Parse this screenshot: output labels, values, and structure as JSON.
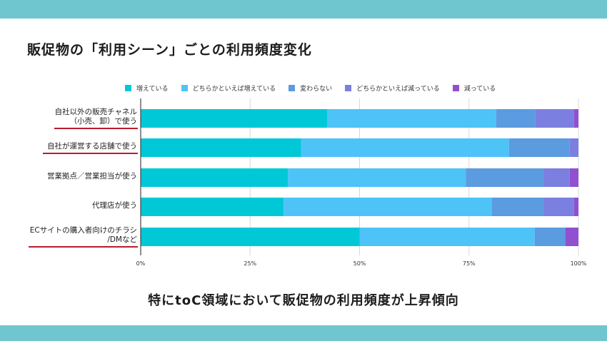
{
  "title": "販促物の「利用シーン」ごとの利用頻度変化",
  "conclusion": "特にtoC領域において販促物の利用頻度が上昇傾向",
  "colors": {
    "band": "#6fc6cf",
    "underline": "#b81c2e"
  },
  "chart_data": {
    "type": "bar",
    "orientation": "horizontal",
    "stacked": true,
    "normalized": true,
    "legend_position": "top",
    "categories": [
      "自社以外の販売チャネル\n（小売、卸）で使う",
      "自社が運営する店舗で使う",
      "営業拠点／営業担当が使う",
      "代理店が使う",
      "ECサイトの購入者向けのチラシ\n/DMなど"
    ],
    "series": [
      {
        "name": "増えている",
        "color": "#00c8d7",
        "values": [
          43,
          37,
          34,
          33,
          50
        ]
      },
      {
        "name": "どちらかといえば増えている",
        "color": "#4dc3f8",
        "values": [
          39,
          48,
          41,
          48,
          40
        ]
      },
      {
        "name": "変わらない",
        "color": "#5b9bdf",
        "values": [
          9,
          14,
          18,
          12,
          7
        ]
      },
      {
        "name": "どちらかといえば減っている",
        "color": "#7b7fe0",
        "values": [
          9,
          2,
          6,
          7,
          0
        ]
      },
      {
        "name": "減っている",
        "color": "#9150cf",
        "values": [
          1,
          0,
          2,
          1,
          3
        ]
      }
    ],
    "xlim": [
      0,
      100
    ],
    "xticks": [
      "0%",
      "25%",
      "50%",
      "75%",
      "100%"
    ],
    "xlabel": "",
    "ylabel": "",
    "grid": true
  }
}
